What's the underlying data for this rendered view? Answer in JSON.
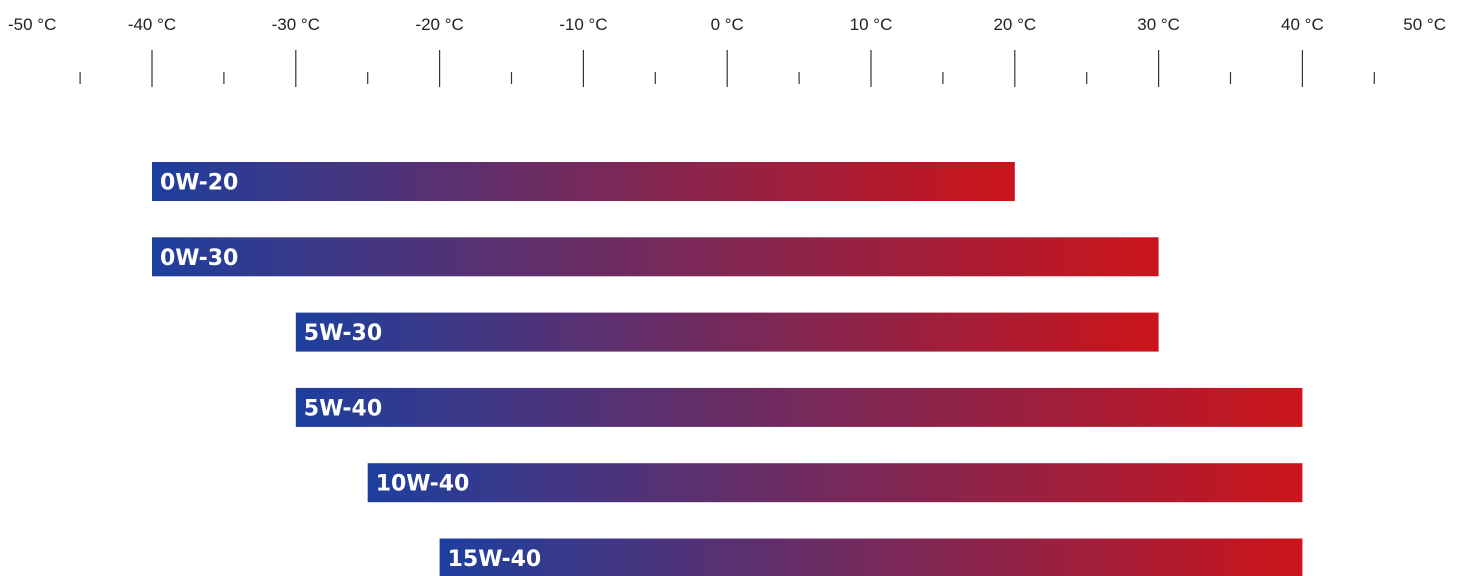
{
  "chart_data": {
    "type": "bar",
    "orientation": "horizontal-range",
    "unit": "°C",
    "x_ticks": [
      {
        "value": -50,
        "label": "-50 °C"
      },
      {
        "value": -40,
        "label": "-40 °C"
      },
      {
        "value": -30,
        "label": "-30 °C"
      },
      {
        "value": -20,
        "label": "-20 °C"
      },
      {
        "value": -10,
        "label": "-10 °C"
      },
      {
        "value": 0,
        "label": "0 °C"
      },
      {
        "value": 10,
        "label": "10 °C"
      },
      {
        "value": 20,
        "label": "20 °C"
      },
      {
        "value": 30,
        "label": "30 °C"
      },
      {
        "value": 40,
        "label": "40 °C"
      },
      {
        "value": 50,
        "label": "50 °C"
      }
    ],
    "minor_ticks": [
      -45,
      -35,
      -25,
      -15,
      -5,
      5,
      15,
      25,
      35,
      45
    ],
    "xlim": [
      -50,
      50
    ],
    "grid": false,
    "gradient": {
      "start": "#1e3f9e",
      "end": "#cc141a"
    },
    "label_color": "#ffffff",
    "series": [
      {
        "label": "0W-20",
        "min": -40,
        "max": 20
      },
      {
        "label": "0W-30",
        "min": -40,
        "max": 30
      },
      {
        "label": "5W-30",
        "min": -30,
        "max": 30
      },
      {
        "label": "5W-40",
        "min": -30,
        "max": 40
      },
      {
        "label": "10W-40",
        "min": -25,
        "max": 40
      },
      {
        "label": "15W-40",
        "min": -20,
        "max": 40
      }
    ]
  }
}
